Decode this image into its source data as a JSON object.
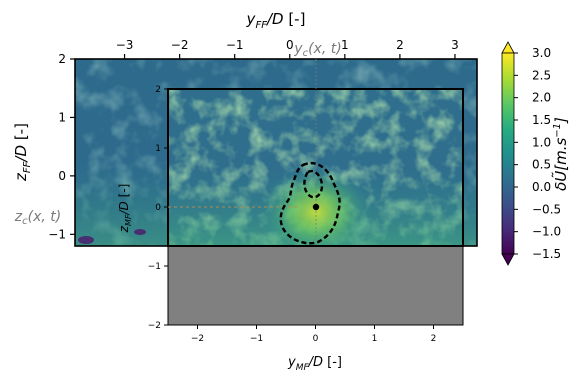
{
  "chart_data": {
    "type": "heatmap",
    "title": "",
    "colormap": "viridis",
    "far_field": {
      "xlabel": "y_FF/D [-]",
      "ylabel": "z_FF/D [-]",
      "xlim": [
        -3.9,
        3.4
      ],
      "ylim": [
        -1.2,
        2.0
      ],
      "xticks": [
        -3,
        -2,
        -1,
        0,
        1,
        2,
        3
      ],
      "xtick_labels": [
        "−3",
        "−2",
        "−1",
        "0",
        "1",
        "2",
        "3"
      ],
      "yticks": [
        -1,
        0,
        1,
        2
      ],
      "ytick_labels": [
        "−1",
        "0",
        "1",
        "2"
      ]
    },
    "mid_field": {
      "xlabel": "y_MF/D [-]",
      "ylabel": "z_MF/D [-]",
      "xlim": [
        -2.5,
        2.5
      ],
      "ylim": [
        -2,
        2
      ],
      "xticks": [
        -2,
        -1,
        0,
        1,
        2
      ],
      "xtick_labels": [
        "−2",
        "−1",
        "0",
        "1",
        "2"
      ],
      "yticks": [
        -2,
        -1,
        0,
        1,
        2
      ],
      "ytick_labels": [
        "−2",
        "−1",
        "0",
        "1",
        "2"
      ],
      "data_floor_z": -0.68
    },
    "annotations": {
      "yc_label": "y_c(x, t)",
      "zc_label": "z_c(x, t)",
      "center": [
        0,
        0
      ],
      "wake_contour_style": "black dashed"
    },
    "colorbar": {
      "label": "δŨ[m.s^-1]",
      "min": -1.5,
      "max": 3.0,
      "ticks": [
        3.0,
        2.5,
        2.0,
        1.5,
        1.0,
        0.5,
        0.0,
        -0.5,
        -1.0,
        -1.5
      ],
      "tick_labels": [
        "3.0",
        "2.5",
        "2.0",
        "1.5",
        "1.0",
        "0.5",
        "0.0",
        "−0.5",
        "−1.0",
        "−1.5"
      ],
      "extend": "both"
    },
    "colors": {
      "background_field": "#2c6e8e",
      "masked_region": "#808080"
    }
  }
}
